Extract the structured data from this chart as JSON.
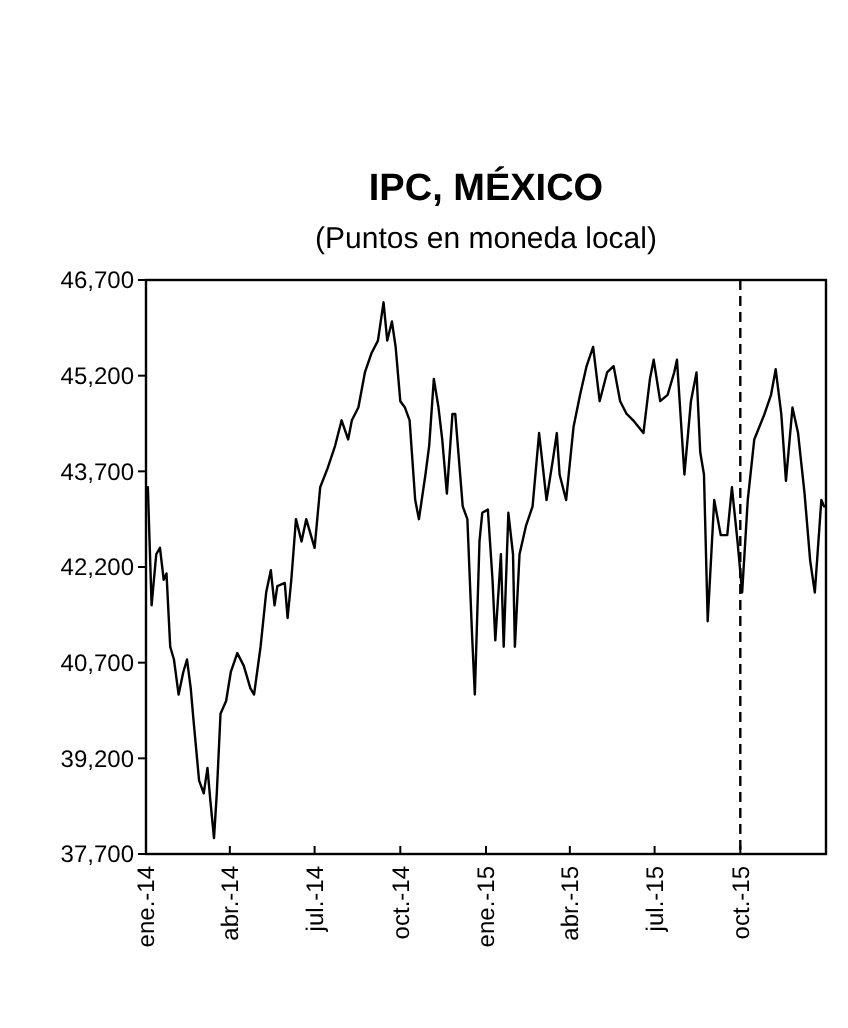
{
  "chart_data": {
    "type": "line",
    "title": "IPC, MÉXICO",
    "subtitle": "(Puntos en moneda local)",
    "xlim": [
      "2014-01-01",
      "2016-01-01"
    ],
    "xticks": [
      {
        "value": "2014-01-01",
        "label": "ene.-14"
      },
      {
        "value": "2014-04-01",
        "label": "abr.-14"
      },
      {
        "value": "2014-07-01",
        "label": "jul.-14"
      },
      {
        "value": "2014-10-01",
        "label": "oct.-14"
      },
      {
        "value": "2015-01-01",
        "label": "ene.-15"
      },
      {
        "value": "2015-04-01",
        "label": "abr.-15"
      },
      {
        "value": "2015-07-01",
        "label": "jul.-15"
      },
      {
        "value": "2015-10-01",
        "label": "oct.-15"
      }
    ],
    "ylim": [
      37700,
      46700
    ],
    "yticks": [
      {
        "value": 37700,
        "label": "37,700"
      },
      {
        "value": 39200,
        "label": "39,200"
      },
      {
        "value": 40700,
        "label": "40,700"
      },
      {
        "value": 42200,
        "label": "42,200"
      },
      {
        "value": 43700,
        "label": "43,700"
      },
      {
        "value": 45200,
        "label": "45,200"
      },
      {
        "value": 46700,
        "label": "46,700"
      }
    ],
    "grid": false,
    "marker": "none",
    "line_style": "solid",
    "ref_lines": [
      {
        "axis": "x",
        "value": "2015-10-01",
        "line_style": "dashed",
        "color": "#000000"
      }
    ],
    "series": [
      {
        "color": "#000000",
        "x": [
          "2014-01-03",
          "2014-01-07",
          "2014-01-12",
          "2014-01-16",
          "2014-01-20",
          "2014-01-23",
          "2014-01-27",
          "2014-01-31",
          "2014-02-05",
          "2014-02-10",
          "2014-02-14",
          "2014-02-18",
          "2014-02-21",
          "2014-02-27",
          "2014-03-04",
          "2014-03-08",
          "2014-03-11",
          "2014-03-15",
          "2014-03-18",
          "2014-03-22",
          "2014-03-28",
          "2014-04-02",
          "2014-04-09",
          "2014-04-16",
          "2014-04-23",
          "2014-04-27",
          "2014-05-04",
          "2014-05-10",
          "2014-05-15",
          "2014-05-19",
          "2014-05-22",
          "2014-05-30",
          "2014-06-02",
          "2014-06-06",
          "2014-06-11",
          "2014-06-17",
          "2014-06-22",
          "2014-07-01",
          "2014-07-07",
          "2014-07-15",
          "2014-07-23",
          "2014-07-30",
          "2014-08-06",
          "2014-08-10",
          "2014-08-17",
          "2014-08-24",
          "2014-08-31",
          "2014-09-07",
          "2014-09-13",
          "2014-09-17",
          "2014-09-22",
          "2014-09-26",
          "2014-10-01",
          "2014-10-06",
          "2014-10-11",
          "2014-10-17",
          "2014-10-21",
          "2014-10-28",
          "2014-11-01",
          "2014-11-06",
          "2014-11-11",
          "2014-11-15",
          "2014-11-20",
          "2014-11-26",
          "2014-11-29",
          "2014-12-07",
          "2014-12-12",
          "2014-12-17",
          "2014-12-20",
          "2014-12-25",
          "2014-12-28",
          "2015-01-03",
          "2015-01-08",
          "2015-01-11",
          "2015-01-17",
          "2015-01-20",
          "2015-01-25",
          "2015-01-30",
          "2015-02-01",
          "2015-02-06",
          "2015-02-13",
          "2015-02-20",
          "2015-02-27",
          "2015-03-07",
          "2015-03-14",
          "2015-03-18",
          "2015-03-21",
          "2015-03-28",
          "2015-04-05",
          "2015-04-12",
          "2015-04-19",
          "2015-04-26",
          "2015-05-03",
          "2015-05-11",
          "2015-05-18",
          "2015-05-25",
          "2015-06-01",
          "2015-06-08",
          "2015-06-19",
          "2015-06-26",
          "2015-06-30",
          "2015-07-07",
          "2015-07-15",
          "2015-07-22",
          "2015-07-25",
          "2015-08-02",
          "2015-08-09",
          "2015-08-15",
          "2015-08-19",
          "2015-08-23",
          "2015-08-27",
          "2015-09-03",
          "2015-09-10",
          "2015-09-17",
          "2015-09-22",
          "2015-09-28",
          "2015-10-03",
          "2015-10-09",
          "2015-10-16",
          "2015-10-27",
          "2015-11-03",
          "2015-11-08",
          "2015-11-14",
          "2015-11-19",
          "2015-11-26",
          "2015-12-02",
          "2015-12-09",
          "2015-12-15",
          "2015-12-20",
          "2015-12-27",
          "2015-12-30"
        ],
        "values": [
          43450,
          41600,
          42400,
          42500,
          42000,
          42100,
          40950,
          40750,
          40200,
          40550,
          40750,
          40300,
          39800,
          38850,
          38650,
          39050,
          38550,
          37950,
          38650,
          39900,
          40100,
          40550,
          40850,
          40650,
          40300,
          40200,
          40950,
          41800,
          42150,
          41600,
          41900,
          41950,
          41400,
          42000,
          42950,
          42600,
          42950,
          42500,
          43450,
          43750,
          44100,
          44500,
          44200,
          44500,
          44700,
          45250,
          45550,
          45750,
          46350,
          45750,
          46050,
          45650,
          44800,
          44700,
          44500,
          43250,
          42950,
          43650,
          44100,
          45150,
          44700,
          44200,
          43350,
          44600,
          44600,
          43150,
          42950,
          41150,
          40200,
          42600,
          43050,
          43100,
          42000,
          41050,
          42400,
          40950,
          43050,
          42400,
          40950,
          42400,
          42850,
          43150,
          44300,
          43250,
          43900,
          44300,
          43650,
          43250,
          44400,
          44900,
          45350,
          45650,
          44800,
          45250,
          45350,
          44800,
          44600,
          44500,
          44300,
          45150,
          45450,
          44800,
          44900,
          45250,
          45450,
          43650,
          44800,
          45250,
          44000,
          43650,
          41350,
          43250,
          42700,
          42700,
          43450,
          42600,
          41800,
          43250,
          44200,
          44600,
          44900,
          45300,
          44600,
          43550,
          44700,
          44300,
          43350,
          42300,
          41800,
          43250,
          43150
        ]
      }
    ]
  }
}
